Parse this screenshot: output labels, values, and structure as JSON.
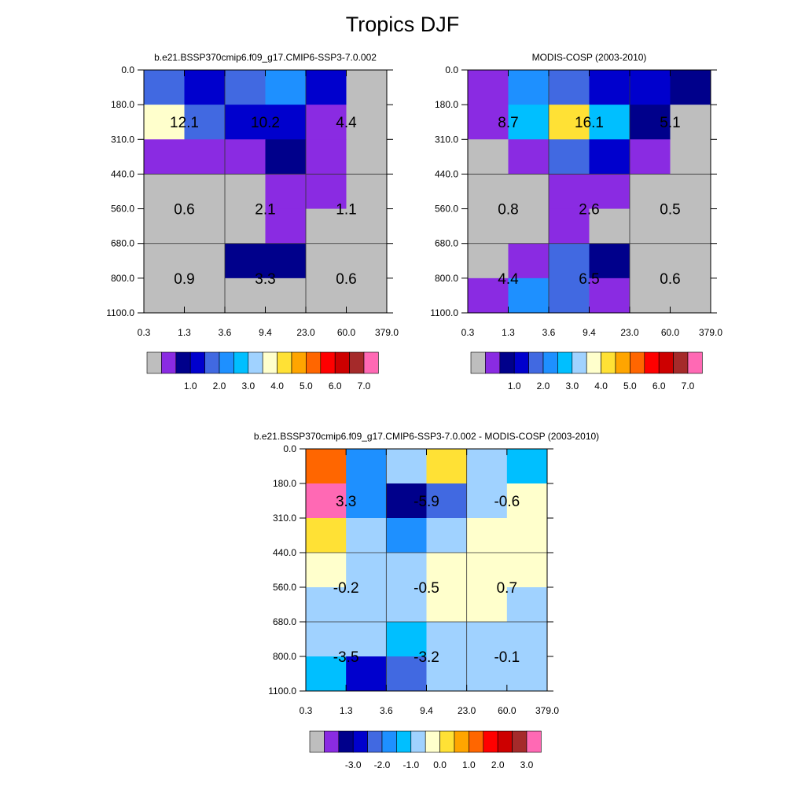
{
  "title": "Tropics DJF",
  "colors": {
    "abs_palette": [
      "#bebebe",
      "#8a2be2",
      "#00008b",
      "#0000cd",
      "#4169e1",
      "#1e90ff",
      "#00bfff",
      "#a0d2ff",
      "#ffffcc",
      "#ffe135",
      "#ffa500",
      "#ff6600",
      "#ff0000",
      "#cd0000",
      "#a52a2a",
      "#ff69b4"
    ],
    "diff_palette": [
      "#bebebe",
      "#8a2be2",
      "#00008b",
      "#0000cd",
      "#4169e1",
      "#1e90ff",
      "#00bfff",
      "#a0d2ff",
      "#ffffcc",
      "#ffe135",
      "#ffa500",
      "#ff6600",
      "#ff0000",
      "#cd0000",
      "#a52a2a",
      "#ff69b4"
    ]
  },
  "chart_data": [
    {
      "type": "heatmap",
      "title": "b.e21.BSSP370cmip6.f09_g17.CMIP6-SSP3-7.0.002",
      "x_ticks": [
        "0.3",
        "1.3",
        "3.6",
        "9.4",
        "23.0",
        "60.0",
        "379.0"
      ],
      "y_ticks": [
        "0.0",
        "180.0",
        "310.0",
        "440.0",
        "560.0",
        "680.0",
        "800.0",
        "1100.0"
      ],
      "cells": [
        [
          4,
          3,
          4,
          5,
          3,
          0
        ],
        [
          8,
          4,
          3,
          3,
          1,
          0
        ],
        [
          1,
          1,
          1,
          2,
          1,
          0
        ],
        [
          0,
          0,
          0,
          1,
          1,
          0
        ],
        [
          0,
          0,
          0,
          1,
          0,
          0
        ],
        [
          0,
          0,
          2,
          2,
          0,
          0
        ],
        [
          0,
          0,
          0,
          0,
          0,
          0
        ]
      ],
      "labels": [
        {
          "text": "12.1",
          "col": 0.5,
          "row": 1.5
        },
        {
          "text": "10.2",
          "col": 2.5,
          "row": 1.5
        },
        {
          "text": "4.4",
          "col": 4.5,
          "row": 1.5
        },
        {
          "text": "0.6",
          "col": 0.5,
          "row": 4
        },
        {
          "text": "2.1",
          "col": 2.5,
          "row": 4
        },
        {
          "text": "1.1",
          "col": 4.5,
          "row": 4
        },
        {
          "text": "0.9",
          "col": 0.5,
          "row": 6
        },
        {
          "text": "3.3",
          "col": 2.5,
          "row": 6
        },
        {
          "text": "0.6",
          "col": 4.5,
          "row": 6
        }
      ],
      "colorbar": {
        "palette": "abs_palette",
        "labels": [
          "1.0",
          "2.0",
          "3.0",
          "4.0",
          "5.0",
          "6.0",
          "7.0"
        ]
      }
    },
    {
      "type": "heatmap",
      "title": "MODIS-COSP (2003-2010)",
      "x_ticks": [
        "0.3",
        "1.3",
        "3.6",
        "9.4",
        "23.0",
        "60.0",
        "379.0"
      ],
      "y_ticks": [
        "0.0",
        "180.0",
        "310.0",
        "440.0",
        "560.0",
        "680.0",
        "800.0",
        "1100.0"
      ],
      "cells": [
        [
          1,
          5,
          4,
          3,
          3,
          2
        ],
        [
          1,
          6,
          9,
          6,
          2,
          0
        ],
        [
          0,
          1,
          4,
          3,
          1,
          0
        ],
        [
          0,
          0,
          1,
          1,
          0,
          0
        ],
        [
          0,
          0,
          1,
          0,
          0,
          0
        ],
        [
          0,
          1,
          4,
          2,
          0,
          0
        ],
        [
          1,
          5,
          4,
          1,
          0,
          0
        ]
      ],
      "labels": [
        {
          "text": "8.7",
          "col": 0.5,
          "row": 1.5
        },
        {
          "text": "16.1",
          "col": 2.5,
          "row": 1.5
        },
        {
          "text": "5.1",
          "col": 4.5,
          "row": 1.5
        },
        {
          "text": "0.8",
          "col": 0.5,
          "row": 4
        },
        {
          "text": "2.6",
          "col": 2.5,
          "row": 4
        },
        {
          "text": "0.5",
          "col": 4.5,
          "row": 4
        },
        {
          "text": "4.4",
          "col": 0.5,
          "row": 6
        },
        {
          "text": "6.5",
          "col": 2.5,
          "row": 6
        },
        {
          "text": "0.6",
          "col": 4.5,
          "row": 6
        }
      ],
      "colorbar": {
        "palette": "abs_palette",
        "labels": [
          "1.0",
          "2.0",
          "3.0",
          "4.0",
          "5.0",
          "6.0",
          "7.0"
        ]
      }
    },
    {
      "type": "heatmap",
      "title": "b.e21.BSSP370cmip6.f09_g17.CMIP6-SSP3-7.0.002 - MODIS-COSP (2003-2010)",
      "x_ticks": [
        "0.3",
        "1.3",
        "3.6",
        "9.4",
        "23.0",
        "60.0",
        "379.0"
      ],
      "y_ticks": [
        "0.0",
        "180.0",
        "310.0",
        "440.0",
        "560.0",
        "680.0",
        "800.0",
        "1100.0"
      ],
      "cells": [
        [
          11,
          5,
          7,
          9,
          7,
          6
        ],
        [
          15,
          5,
          2,
          4,
          7,
          8
        ],
        [
          9,
          7,
          5,
          7,
          8,
          8
        ],
        [
          8,
          7,
          7,
          8,
          8,
          8
        ],
        [
          7,
          7,
          7,
          8,
          8,
          7
        ],
        [
          7,
          7,
          6,
          7,
          7,
          7
        ],
        [
          6,
          3,
          4,
          7,
          7,
          7
        ]
      ],
      "labels": [
        {
          "text": "3.3",
          "col": 0.5,
          "row": 1.5
        },
        {
          "text": "-5.9",
          "col": 2.5,
          "row": 1.5
        },
        {
          "text": "-0.6",
          "col": 4.5,
          "row": 1.5
        },
        {
          "text": "-0.2",
          "col": 0.5,
          "row": 4
        },
        {
          "text": "-0.5",
          "col": 2.5,
          "row": 4
        },
        {
          "text": "0.7",
          "col": 4.5,
          "row": 4
        },
        {
          "text": "-3.5",
          "col": 0.5,
          "row": 6
        },
        {
          "text": "-3.2",
          "col": 2.5,
          "row": 6
        },
        {
          "text": "-0.1",
          "col": 4.5,
          "row": 6
        }
      ],
      "colorbar": {
        "palette": "diff_palette",
        "labels": [
          "-3.0",
          "-2.0",
          "-1.0",
          "0.0",
          "1.0",
          "2.0",
          "3.0"
        ]
      }
    }
  ]
}
